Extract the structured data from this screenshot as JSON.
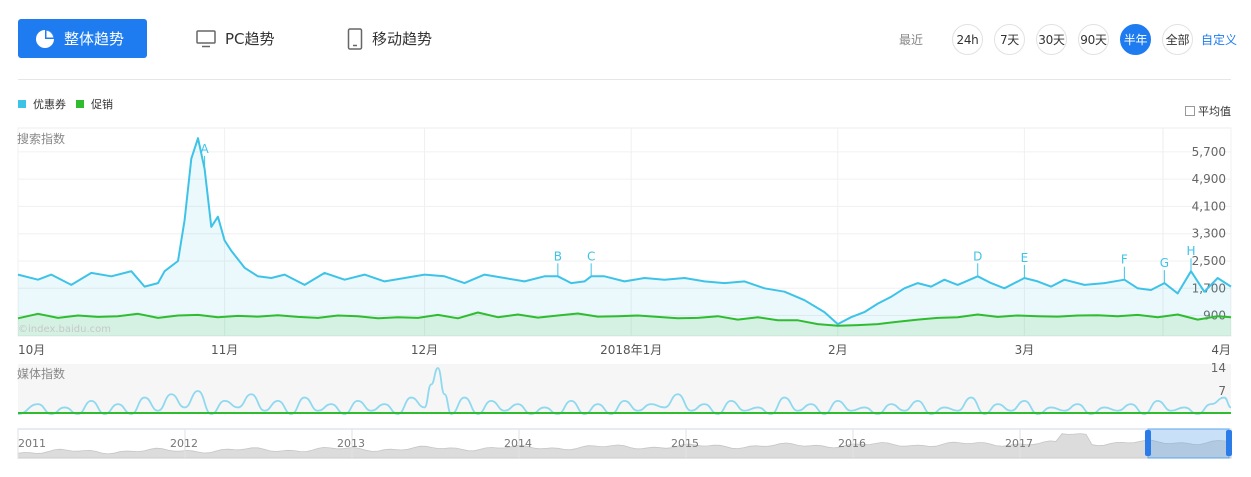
{
  "tabs": [
    {
      "label": "整体趋势",
      "icon": "pie-chart-icon",
      "active": true
    },
    {
      "label": "PC趋势",
      "icon": "monitor-icon",
      "active": false
    },
    {
      "label": "移动趋势",
      "icon": "mobile-phone-icon",
      "active": false
    }
  ],
  "range": {
    "label": "最近",
    "options": [
      "24h",
      "7天",
      "30天",
      "90天",
      "半年",
      "全部"
    ],
    "selected": "半年",
    "custom": "自定义"
  },
  "legend": {
    "series": [
      {
        "name": "优惠券",
        "color": "#3ec3e8"
      },
      {
        "name": "促销",
        "color": "#2fbd2f"
      }
    ],
    "average_label": "平均值"
  },
  "colors": {
    "accent": "#1f7cf0",
    "coupon": "#3ec3e8",
    "promo": "#2fbd2f"
  },
  "watermark": "©index.baidu.com",
  "chart_data": [
    {
      "type": "line",
      "ylabel": "搜索指数",
      "ylim": [
        300,
        6400
      ],
      "yticks": [
        900,
        1700,
        2500,
        3300,
        4100,
        4900,
        5700
      ],
      "ytick_labels": [
        "900",
        "1,700",
        "2,500",
        "3,300",
        "4,100",
        "4,900",
        "5,700"
      ],
      "xlim": [
        0,
        182
      ],
      "x_labels": [
        {
          "x": 0,
          "label": "10月"
        },
        {
          "x": 31,
          "label": "11月"
        },
        {
          "x": 61,
          "label": "12月"
        },
        {
          "x": 92,
          "label": "2018年1月"
        },
        {
          "x": 123,
          "label": "2月"
        },
        {
          "x": 151,
          "label": "3月"
        },
        {
          "x": 182,
          "label": "4月"
        }
      ],
      "annotations": [
        {
          "label": "A",
          "x": 28
        },
        {
          "label": "B",
          "x": 81
        },
        {
          "label": "C",
          "x": 86
        },
        {
          "label": "D",
          "x": 144
        },
        {
          "label": "E",
          "x": 151
        },
        {
          "label": "F",
          "x": 166
        },
        {
          "label": "G",
          "x": 172
        },
        {
          "label": "H",
          "x": 176
        }
      ],
      "series": [
        {
          "name": "优惠券",
          "x": [
            0,
            3,
            5,
            8,
            11,
            14,
            17,
            19,
            21,
            22,
            24,
            25,
            26,
            27,
            28,
            29,
            30,
            31,
            32,
            34,
            36,
            38,
            40,
            43,
            46,
            49,
            52,
            55,
            58,
            61,
            64,
            67,
            70,
            73,
            76,
            79,
            81,
            83,
            85,
            86,
            88,
            91,
            94,
            97,
            100,
            103,
            106,
            109,
            112,
            115,
            118,
            121,
            123,
            125,
            127,
            129,
            131,
            133,
            135,
            137,
            139,
            141,
            144,
            146,
            148,
            151,
            153,
            155,
            157,
            160,
            163,
            166,
            168,
            170,
            172,
            174,
            176,
            178,
            180,
            182
          ],
          "values": [
            2100,
            1950,
            2100,
            1800,
            2150,
            2050,
            2200,
            1750,
            1850,
            2200,
            2500,
            3700,
            5500,
            6100,
            5200,
            3500,
            3800,
            3100,
            2800,
            2300,
            2050,
            2000,
            2100,
            1800,
            2150,
            1950,
            2100,
            1900,
            2000,
            2100,
            2050,
            1850,
            2100,
            2000,
            1900,
            2050,
            2050,
            1850,
            1900,
            2050,
            2050,
            1900,
            2000,
            1950,
            2000,
            1900,
            1850,
            1900,
            1700,
            1600,
            1350,
            1000,
            650,
            850,
            1000,
            1250,
            1450,
            1700,
            1850,
            1750,
            1950,
            1800,
            2050,
            1850,
            1700,
            2000,
            1900,
            1750,
            1950,
            1800,
            1850,
            1950,
            1700,
            1650,
            1850,
            1550,
            2200,
            1600,
            2000,
            1750
          ]
        },
        {
          "name": "促销",
          "x": [
            0,
            3,
            6,
            9,
            12,
            15,
            18,
            21,
            24,
            27,
            30,
            33,
            36,
            39,
            42,
            45,
            48,
            51,
            54,
            57,
            60,
            63,
            66,
            69,
            72,
            75,
            78,
            81,
            84,
            87,
            90,
            93,
            96,
            99,
            102,
            105,
            108,
            111,
            114,
            117,
            120,
            123,
            126,
            129,
            132,
            135,
            138,
            141,
            144,
            147,
            150,
            153,
            156,
            159,
            162,
            165,
            168,
            171,
            174,
            177,
            180,
            182
          ],
          "values": [
            820,
            950,
            830,
            900,
            860,
            880,
            950,
            830,
            900,
            920,
            850,
            890,
            870,
            910,
            860,
            830,
            900,
            880,
            820,
            850,
            830,
            920,
            820,
            990,
            850,
            930,
            840,
            900,
            960,
            870,
            880,
            900,
            860,
            820,
            830,
            880,
            780,
            850,
            760,
            760,
            650,
            600,
            620,
            650,
            720,
            780,
            830,
            850,
            930,
            860,
            900,
            880,
            870,
            900,
            910,
            880,
            920,
            850,
            930,
            780,
            880,
            850
          ]
        }
      ]
    },
    {
      "type": "line",
      "ylabel": "媒体指数",
      "ylim": [
        0,
        14
      ],
      "yticks": [
        7,
        14
      ],
      "ytick_labels": [
        "7",
        "14"
      ],
      "xlim": [
        0,
        182
      ],
      "series": [
        {
          "name": "优惠券",
          "x": [
            0,
            3,
            5,
            7,
            9,
            11,
            13,
            15,
            17,
            19,
            21,
            23,
            25,
            27,
            29,
            31,
            33,
            35,
            37,
            39,
            41,
            43,
            45,
            47,
            49,
            51,
            53,
            55,
            57,
            59,
            61,
            62,
            63,
            64,
            65,
            67,
            69,
            71,
            73,
            75,
            77,
            79,
            81,
            83,
            85,
            87,
            89,
            91,
            93,
            95,
            97,
            99,
            101,
            103,
            105,
            107,
            109,
            111,
            113,
            115,
            117,
            119,
            121,
            123,
            125,
            127,
            129,
            131,
            133,
            135,
            137,
            139,
            141,
            143,
            145,
            147,
            149,
            151,
            153,
            155,
            157,
            159,
            161,
            163,
            165,
            167,
            169,
            171,
            173,
            175,
            177,
            179,
            181,
            182
          ],
          "values": [
            0,
            3,
            0,
            2,
            0,
            4,
            0,
            3,
            0,
            5,
            1,
            6,
            2,
            7,
            0,
            4,
            2,
            6,
            1,
            4,
            0,
            5,
            1,
            3,
            0,
            4,
            1,
            3,
            0,
            5,
            2,
            9,
            14,
            6,
            0,
            5,
            0,
            4,
            1,
            3,
            0,
            2,
            0,
            4,
            0,
            3,
            0,
            4,
            1,
            3,
            2,
            6,
            1,
            3,
            0,
            4,
            1,
            2,
            0,
            5,
            1,
            3,
            0,
            4,
            1,
            2,
            0,
            3,
            1,
            4,
            0,
            2,
            1,
            5,
            0,
            3,
            1,
            4,
            0,
            2,
            1,
            3,
            0,
            2,
            1,
            3,
            0,
            4,
            1,
            2,
            0,
            3,
            5,
            2
          ]
        },
        {
          "name": "促销",
          "x": [
            0,
            182
          ],
          "values": [
            0,
            0
          ]
        }
      ]
    },
    {
      "type": "area",
      "x_labels": [
        "2011",
        "2012",
        "2013",
        "2014",
        "2015",
        "2016",
        "2017"
      ],
      "note": "overview navigator with selected range"
    }
  ]
}
